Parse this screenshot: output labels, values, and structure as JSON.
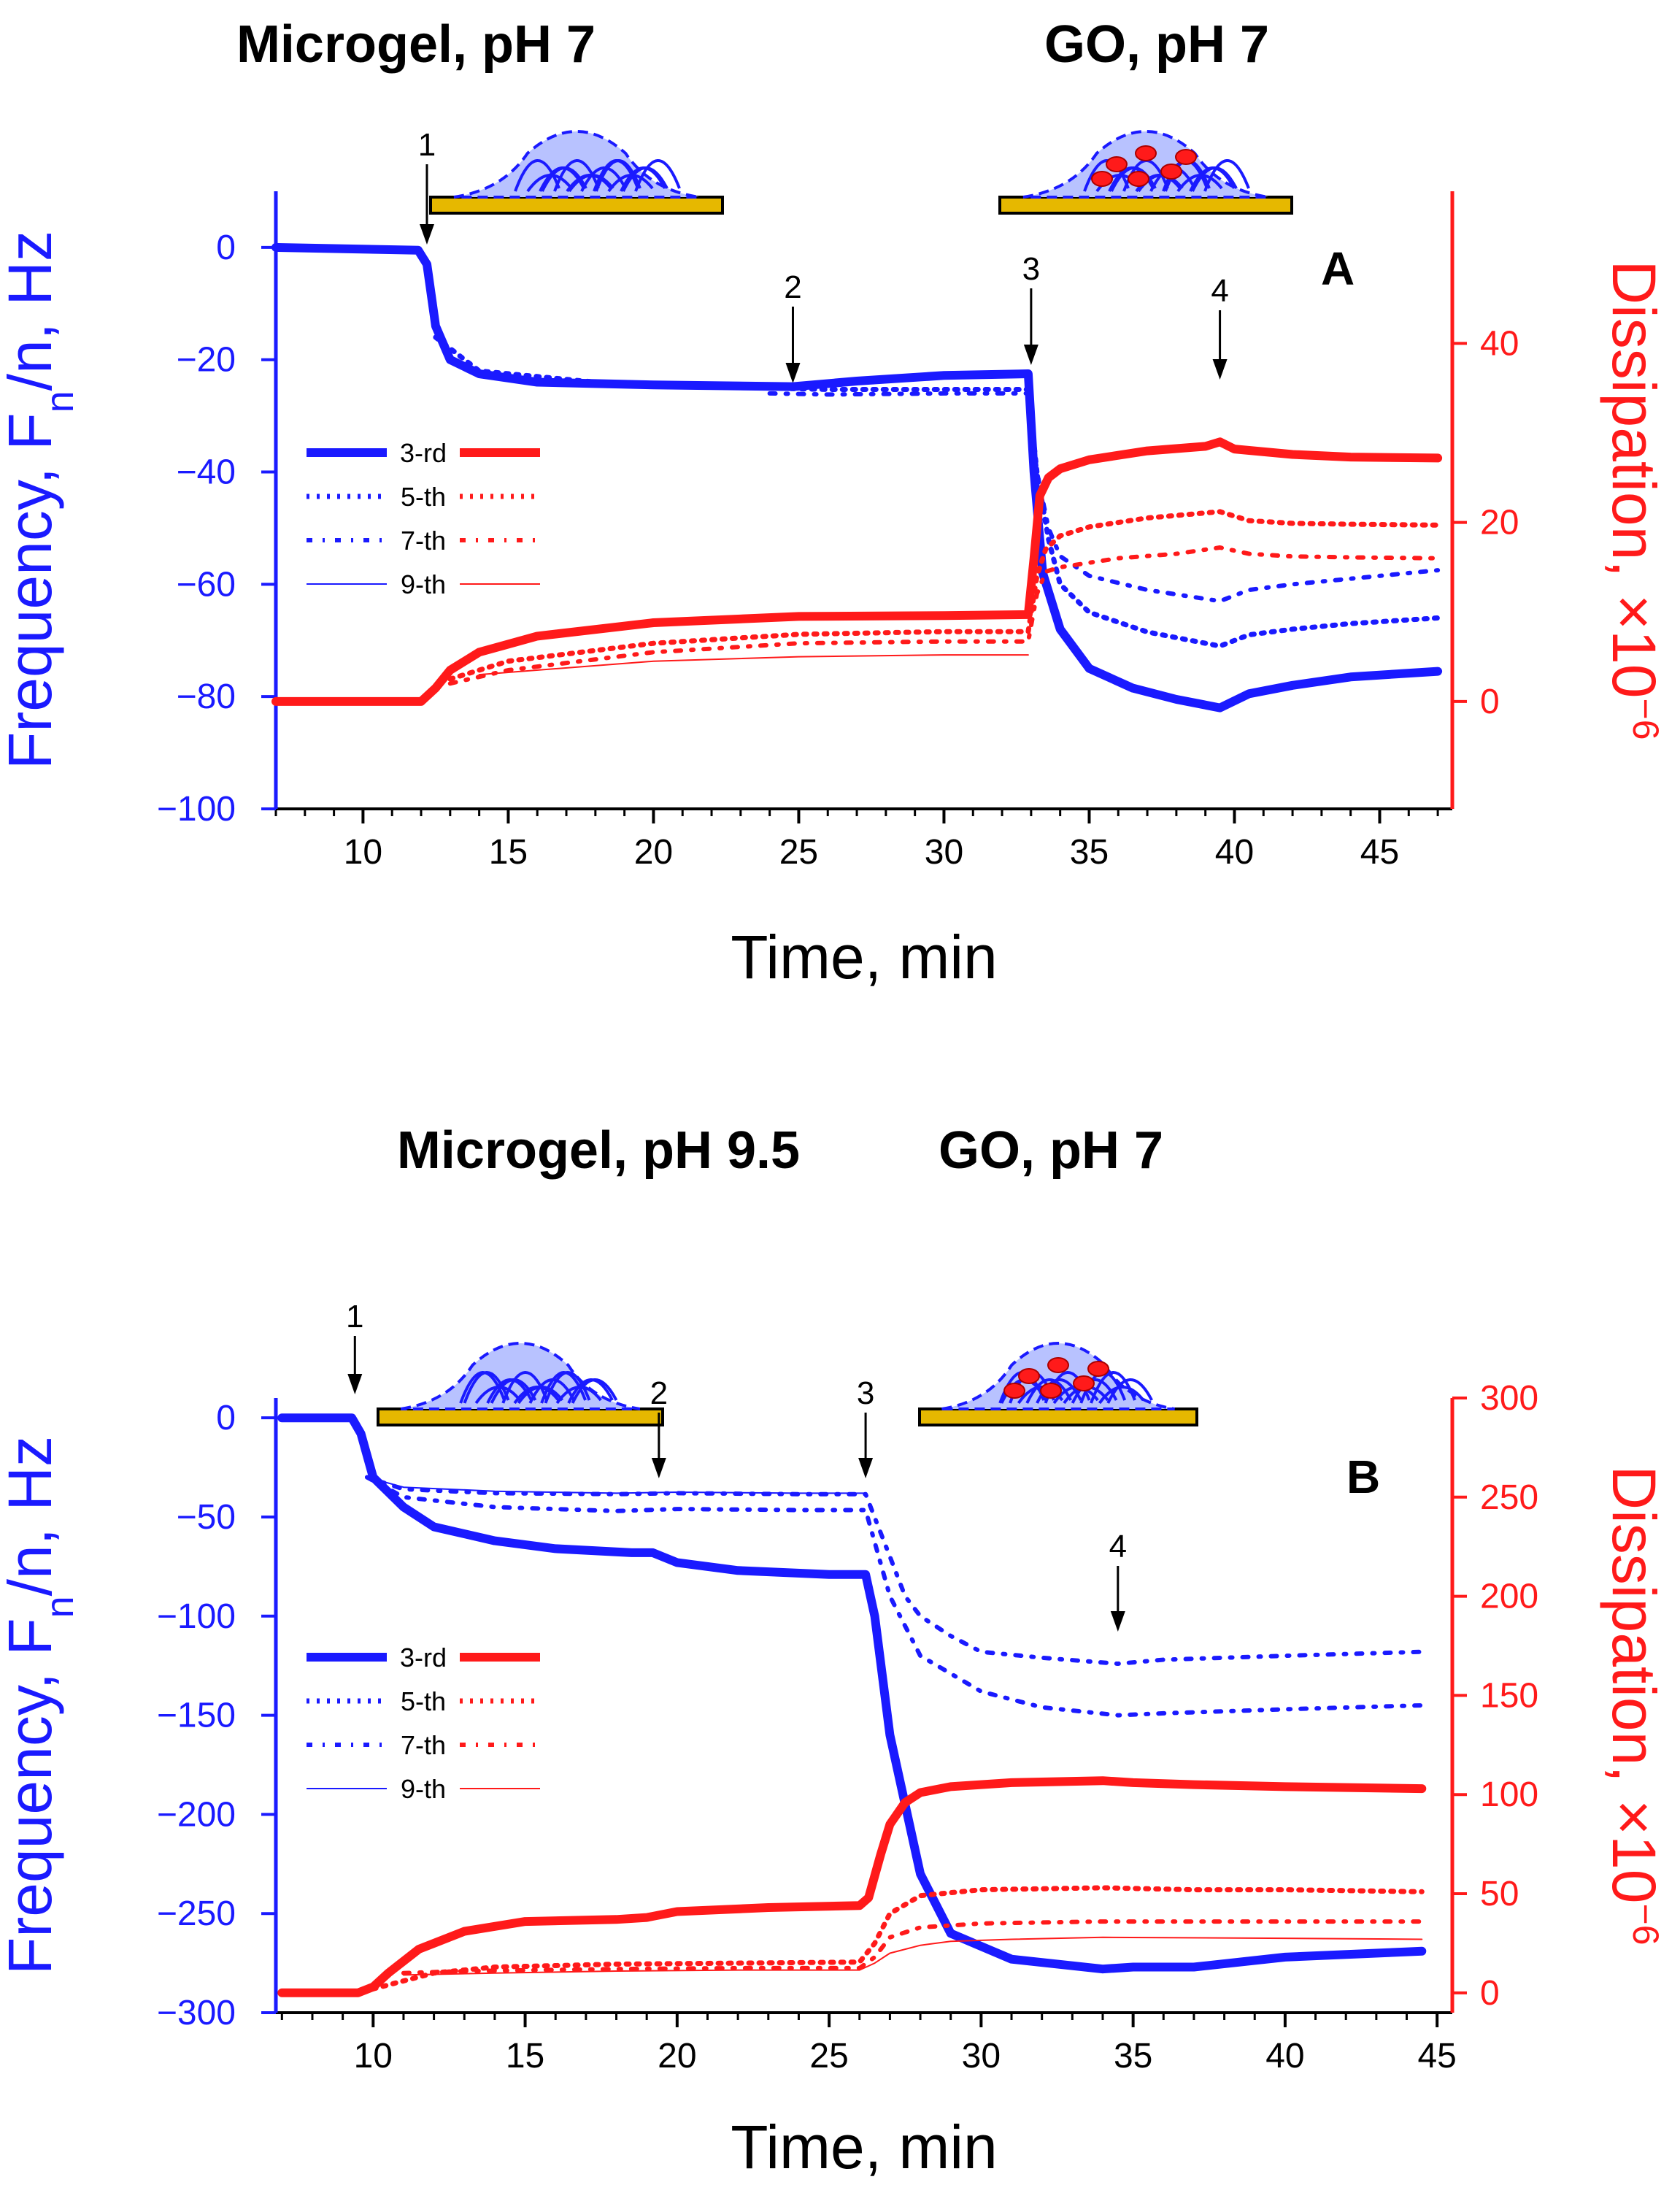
{
  "colors": {
    "frequency": "#1a1aff",
    "dissipation": "#ff1a1a",
    "substrate": "#e6b800",
    "text": "#000000"
  },
  "chart_data": [
    {
      "type": "line",
      "panel_label": "A",
      "titles": [
        "Microgel, pH 7",
        "GO, pH 7"
      ],
      "xlabel": "Time, min",
      "ylabel_left": "Frequency, F",
      "ylabel_left_sub": "n",
      "ylabel_left_suffix": "/n, Hz",
      "ylabel_right": "Dissipation, ×10",
      "ylabel_right_sup": "−6",
      "xlim": [
        7,
        47.5
      ],
      "xticks": [
        10,
        15,
        20,
        25,
        30,
        35,
        40,
        45
      ],
      "ylim_left": [
        -100,
        10
      ],
      "yticks_left": [
        0,
        -20,
        -40,
        -60,
        -80,
        -100
      ],
      "ylim_right": [
        -12,
        57
      ],
      "yticks_right": [
        0,
        20,
        40
      ],
      "arrows": [
        {
          "label": "1",
          "x": 12.2
        },
        {
          "label": "2",
          "x": 24.8
        },
        {
          "label": "3",
          "x": 33.0
        },
        {
          "label": "4",
          "x": 39.5
        }
      ],
      "legend": [
        "3-rd",
        "5-th",
        "7-th",
        "9-th"
      ],
      "series": [
        {
          "name": "3-rd",
          "axis": "left",
          "style": "solid",
          "x": [
            7,
            11.9,
            12.2,
            12.5,
            13,
            14,
            16,
            20,
            24.8,
            27,
            30,
            32.9,
            33.1,
            33.4,
            34,
            35,
            36.5,
            38,
            39.5,
            40.5,
            42,
            44,
            47
          ],
          "y": [
            0,
            -0.5,
            -3,
            -14,
            -20,
            -22.5,
            -24,
            -24.5,
            -24.8,
            -23.8,
            -22.8,
            -22.5,
            -40,
            -58,
            -68,
            -75,
            -78.5,
            -80.5,
            -82,
            -79.5,
            -78,
            -76.5,
            -75.5
          ]
        },
        {
          "name": "5-th",
          "axis": "left",
          "style": "dotted",
          "x": [
            12.5,
            14,
            18,
            22,
            26,
            30,
            32.9,
            33.2,
            33.6,
            34,
            35,
            37,
            39.5,
            40.5,
            42,
            44,
            47
          ],
          "y": [
            -16,
            -22,
            -24,
            -24.8,
            -25.3,
            -25.3,
            -25.3,
            -40,
            -52,
            -60,
            -65,
            -68.5,
            -71,
            -69,
            -68,
            -67,
            -66
          ]
        },
        {
          "name": "7-th",
          "axis": "left",
          "style": "dashdot",
          "x": [
            24,
            26,
            30,
            32.9,
            33.2,
            33.6,
            34,
            35,
            37,
            39.5,
            40.5,
            42,
            44,
            47
          ],
          "y": [
            -26,
            -26.2,
            -26,
            -26,
            -40,
            -50,
            -55,
            -58.5,
            -61,
            -63,
            -61,
            -60,
            -59,
            -57.5
          ]
        },
        {
          "name": "3-rd",
          "axis": "right",
          "style": "solid",
          "x": [
            7,
            12,
            12.5,
            13,
            14,
            16,
            20,
            25,
            30,
            32.9,
            33.1,
            33.3,
            33.6,
            34,
            35,
            37,
            39,
            39.5,
            40,
            42,
            44,
            47
          ],
          "y": [
            0,
            0,
            1.5,
            3.5,
            5.5,
            7.3,
            8.8,
            9.5,
            9.6,
            9.7,
            16,
            23,
            25,
            26,
            27,
            28,
            28.5,
            29,
            28.2,
            27.6,
            27.3,
            27.2
          ]
        },
        {
          "name": "5-th",
          "axis": "right",
          "style": "dotted",
          "x": [
            13,
            15,
            20,
            25,
            30,
            32.9,
            33.2,
            33.5,
            34,
            35,
            37,
            39.5,
            40.5,
            42,
            44,
            47
          ],
          "y": [
            2.5,
            4.5,
            6.5,
            7.5,
            7.8,
            7.8,
            14,
            17,
            18.5,
            19.5,
            20.5,
            21.2,
            20.2,
            19.9,
            19.8,
            19.7
          ]
        },
        {
          "name": "7-th",
          "axis": "right",
          "style": "dashdot",
          "x": [
            13,
            15,
            20,
            25,
            30,
            32.9,
            33.2,
            33.5,
            34,
            36,
            38,
            39.5,
            40.5,
            42,
            44,
            47
          ],
          "y": [
            2,
            3.5,
            5.5,
            6.5,
            6.7,
            6.7,
            12,
            14.5,
            15,
            16,
            16.5,
            17.2,
            16.5,
            16.2,
            16.1,
            16
          ]
        },
        {
          "name": "9-th",
          "axis": "right",
          "style": "thin",
          "x": [
            14,
            20,
            25,
            30,
            32.9
          ],
          "y": [
            3,
            4.5,
            5,
            5.2,
            5.2
          ]
        }
      ]
    },
    {
      "type": "line",
      "panel_label": "B",
      "titles": [
        "Microgel, pH 9.5",
        "GO, pH 7"
      ],
      "xlabel": "Time, min",
      "ylabel_left": "Frequency, F",
      "ylabel_left_sub": "n",
      "ylabel_left_suffix": "/n, Hz",
      "ylabel_right": "Dissipation, ×10",
      "ylabel_right_sup": "−6",
      "xlim": [
        6.8,
        45.5
      ],
      "xticks": [
        10,
        15,
        20,
        25,
        30,
        35,
        40,
        45
      ],
      "ylim_left": [
        -300,
        10
      ],
      "yticks_left": [
        0,
        -50,
        -100,
        -150,
        -200,
        -250,
        -300
      ],
      "ylim_right": [
        -10,
        300
      ],
      "yticks_right": [
        0,
        50,
        100,
        150,
        200,
        250,
        300
      ],
      "arrows": [
        {
          "label": "1",
          "x": 9.4
        },
        {
          "label": "2",
          "x": 19.4
        },
        {
          "label": "3",
          "x": 26.2
        },
        {
          "label": "4",
          "x": 34.5
        }
      ],
      "legend": [
        "3-rd",
        "5-th",
        "7-th",
        "9-th"
      ],
      "series": [
        {
          "name": "3-rd",
          "axis": "left",
          "style": "solid",
          "x": [
            7,
            9.3,
            9.6,
            10,
            11,
            12,
            14,
            16,
            18.5,
            19.2,
            20,
            22,
            25,
            26.2,
            26.5,
            27,
            28,
            29,
            31,
            34,
            35,
            37,
            40,
            44.5
          ],
          "y": [
            0,
            0,
            -8,
            -30,
            -45,
            -55,
            -62,
            -66,
            -68,
            -68,
            -73,
            -77,
            -79,
            -79,
            -100,
            -160,
            -230,
            -260,
            -273,
            -278,
            -277,
            -277,
            -272,
            -269
          ]
        },
        {
          "name": "5-th",
          "axis": "left",
          "style": "dashdot",
          "x": [
            9.8,
            11,
            14,
            18,
            20,
            24,
            26.2,
            27,
            28,
            30,
            32,
            34.5,
            36,
            40,
            44.5
          ],
          "y": [
            -30,
            -40,
            -45,
            -47,
            -46,
            -46.5,
            -46.5,
            -90,
            -120,
            -138,
            -146,
            -150,
            -149,
            -147,
            -145
          ]
        },
        {
          "name": "7-th",
          "axis": "left",
          "style": "dashdot",
          "x": [
            9.8,
            11,
            14,
            18,
            20,
            24,
            26.2,
            27,
            27.5,
            28,
            29,
            30,
            32,
            34.5,
            36,
            40,
            44.5
          ],
          "y": [
            -30,
            -36,
            -38,
            -38.5,
            -38,
            -38.5,
            -38.5,
            -70,
            -90,
            -100,
            -110,
            -118,
            -121,
            -124,
            -122,
            -120,
            -118
          ]
        },
        {
          "name": "9-th",
          "axis": "left",
          "style": "thin",
          "x": [
            9.8,
            11,
            14,
            18,
            20,
            24,
            26.2
          ],
          "y": [
            -30,
            -35,
            -37,
            -38,
            -37.5,
            -38,
            -38
          ]
        },
        {
          "name": "3-rd",
          "axis": "right",
          "style": "solid",
          "x": [
            7,
            9.5,
            10,
            10.5,
            11.5,
            13,
            15,
            18,
            19,
            20,
            23,
            26,
            26.3,
            26.7,
            27,
            27.5,
            28,
            29,
            31,
            34,
            35,
            37,
            40,
            44.5
          ],
          "y": [
            0,
            0,
            3,
            10,
            22,
            31,
            36,
            37,
            38,
            41,
            43,
            44,
            48,
            70,
            85,
            96,
            101,
            104,
            106,
            107,
            106,
            105,
            104,
            103
          ]
        },
        {
          "name": "5-th",
          "axis": "right",
          "style": "dotted",
          "x": [
            10,
            11,
            12,
            14,
            18,
            22,
            26,
            26.5,
            27,
            28,
            30,
            34,
            37,
            40,
            44.5
          ],
          "y": [
            2,
            6,
            10,
            13,
            14.5,
            15,
            15.5,
            25,
            40,
            49,
            52,
            53,
            52,
            52,
            51
          ]
        },
        {
          "name": "7-th",
          "axis": "right",
          "style": "dashdot",
          "x": [
            11,
            13,
            18,
            22,
            26,
            26.5,
            27,
            28,
            30,
            34,
            40,
            44.5
          ],
          "y": [
            10,
            11,
            12,
            12.5,
            12.5,
            18,
            28,
            33,
            35,
            36,
            36,
            36
          ]
        },
        {
          "name": "9-th",
          "axis": "right",
          "style": "thin",
          "x": [
            11,
            14,
            18,
            22,
            26,
            26.5,
            27,
            28,
            29,
            31,
            34,
            40,
            44.5
          ],
          "y": [
            9,
            10,
            11,
            11.5,
            11.5,
            15,
            20,
            24,
            26,
            27,
            28,
            27.5,
            27
          ]
        }
      ]
    }
  ]
}
